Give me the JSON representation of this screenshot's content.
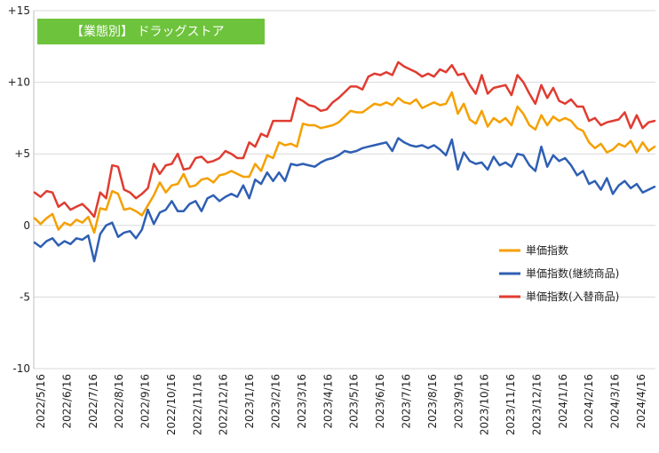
{
  "chart_data": {
    "type": "line",
    "title": "【業態別】 ドラッグストア",
    "ylim": [
      -10,
      15
    ],
    "yticks": [
      "+15",
      "+10",
      "+5",
      "0",
      "-5",
      "-10"
    ],
    "ytick_values": [
      15,
      10,
      5,
      0,
      -5,
      -10
    ],
    "xticks": [
      "2022/5/16",
      "2022/6/16",
      "2022/7/16",
      "2022/8/16",
      "2022/9/16",
      "2022/10/16",
      "2022/11/16",
      "2022/12/16",
      "2023/1/16",
      "2023/2/16",
      "2023/3/16",
      "2023/4/16",
      "2023/5/16",
      "2023/6/16",
      "2023/7/16",
      "2023/8/16",
      "2023/9/16",
      "2023/10/16",
      "2023/11/16",
      "2023/12/16",
      "2024/1/16",
      "2024/2/16",
      "2024/3/16",
      "2024/4/16"
    ],
    "legend_position": "right",
    "grid": "horizontal",
    "series": [
      {
        "name": "単価指数",
        "color": "#f5a000",
        "values": [
          0.5,
          0.1,
          0.5,
          0.8,
          -0.3,
          0.2,
          0.0,
          0.4,
          0.2,
          0.6,
          -0.5,
          1.2,
          1.1,
          2.4,
          2.2,
          1.1,
          1.2,
          1.0,
          0.7,
          1.4,
          2.1,
          3.0,
          2.3,
          2.8,
          2.9,
          3.6,
          2.7,
          2.8,
          3.2,
          3.3,
          3.0,
          3.5,
          3.6,
          3.8,
          3.6,
          3.4,
          3.4,
          4.3,
          3.8,
          4.9,
          4.7,
          5.8,
          5.6,
          5.7,
          5.5,
          7.1,
          7.0,
          7.0,
          6.8,
          6.9,
          7.0,
          7.2,
          7.6,
          8.0,
          7.9,
          7.9,
          8.2,
          8.5,
          8.4,
          8.6,
          8.4,
          8.9,
          8.6,
          8.5,
          8.8,
          8.2,
          8.4,
          8.6,
          8.4,
          8.5,
          9.3,
          7.8,
          8.5,
          7.4,
          7.1,
          8.0,
          6.9,
          7.5,
          7.2,
          7.5,
          7.0,
          8.3,
          7.8,
          7.0,
          6.7,
          7.7,
          7.0,
          7.6,
          7.3,
          7.5,
          7.3,
          6.8,
          6.6,
          5.8,
          5.4,
          5.7,
          5.1,
          5.3,
          5.7,
          5.5,
          5.9,
          5.1,
          5.8,
          5.2,
          5.5
        ]
      },
      {
        "name": "単価指数(継続商品)",
        "color": "#2f5fb3",
        "values": [
          -1.2,
          -1.5,
          -1.1,
          -0.9,
          -1.4,
          -1.1,
          -1.3,
          -0.9,
          -1.0,
          -0.7,
          -2.5,
          -0.6,
          0.0,
          0.2,
          -0.8,
          -0.5,
          -0.4,
          -0.9,
          -0.3,
          1.1,
          0.1,
          0.9,
          1.1,
          1.7,
          1.0,
          1.0,
          1.5,
          1.7,
          1.0,
          1.9,
          2.1,
          1.7,
          2.0,
          2.2,
          2.0,
          2.8,
          1.9,
          3.2,
          2.9,
          3.7,
          3.1,
          3.7,
          3.1,
          4.3,
          4.2,
          4.3,
          4.2,
          4.1,
          4.4,
          4.6,
          4.7,
          4.9,
          5.2,
          5.1,
          5.2,
          5.4,
          5.5,
          5.6,
          5.7,
          5.8,
          5.2,
          6.1,
          5.8,
          5.6,
          5.5,
          5.6,
          5.4,
          5.6,
          5.3,
          4.9,
          6.0,
          3.9,
          5.1,
          4.5,
          4.3,
          4.4,
          3.9,
          4.8,
          4.2,
          4.4,
          4.1,
          5.0,
          4.9,
          4.2,
          3.8,
          5.5,
          4.1,
          4.9,
          4.5,
          4.7,
          4.2,
          3.5,
          3.8,
          2.9,
          3.1,
          2.5,
          3.3,
          2.2,
          2.8,
          3.1,
          2.6,
          2.9,
          2.3,
          2.5,
          2.7
        ]
      },
      {
        "name": "単価指数(入替商品)",
        "color": "#e03c31",
        "values": [
          2.3,
          2.0,
          2.4,
          2.3,
          1.3,
          1.6,
          1.1,
          1.3,
          1.5,
          1.1,
          0.6,
          2.3,
          1.9,
          4.2,
          4.1,
          2.5,
          2.3,
          1.9,
          2.2,
          2.6,
          4.3,
          3.6,
          4.2,
          4.3,
          5.0,
          3.9,
          4.0,
          4.7,
          4.8,
          4.4,
          4.5,
          4.7,
          5.2,
          5.0,
          4.7,
          4.7,
          5.8,
          5.5,
          6.4,
          6.2,
          7.3,
          7.3,
          7.3,
          7.3,
          8.9,
          8.7,
          8.4,
          8.3,
          8.0,
          8.1,
          8.6,
          8.9,
          9.3,
          9.7,
          9.7,
          9.5,
          10.4,
          10.6,
          10.5,
          10.7,
          10.5,
          11.4,
          11.1,
          10.9,
          10.7,
          10.4,
          10.6,
          10.4,
          10.9,
          10.7,
          11.2,
          10.5,
          10.6,
          9.8,
          9.2,
          10.5,
          9.2,
          9.6,
          9.7,
          9.8,
          9.1,
          10.5,
          10.0,
          9.2,
          8.5,
          9.8,
          8.9,
          9.6,
          8.7,
          8.5,
          8.8,
          8.3,
          8.3,
          7.3,
          7.5,
          7.0,
          7.2,
          7.3,
          7.4,
          7.9,
          6.8,
          7.7,
          6.8,
          7.2,
          7.3
        ]
      }
    ]
  }
}
